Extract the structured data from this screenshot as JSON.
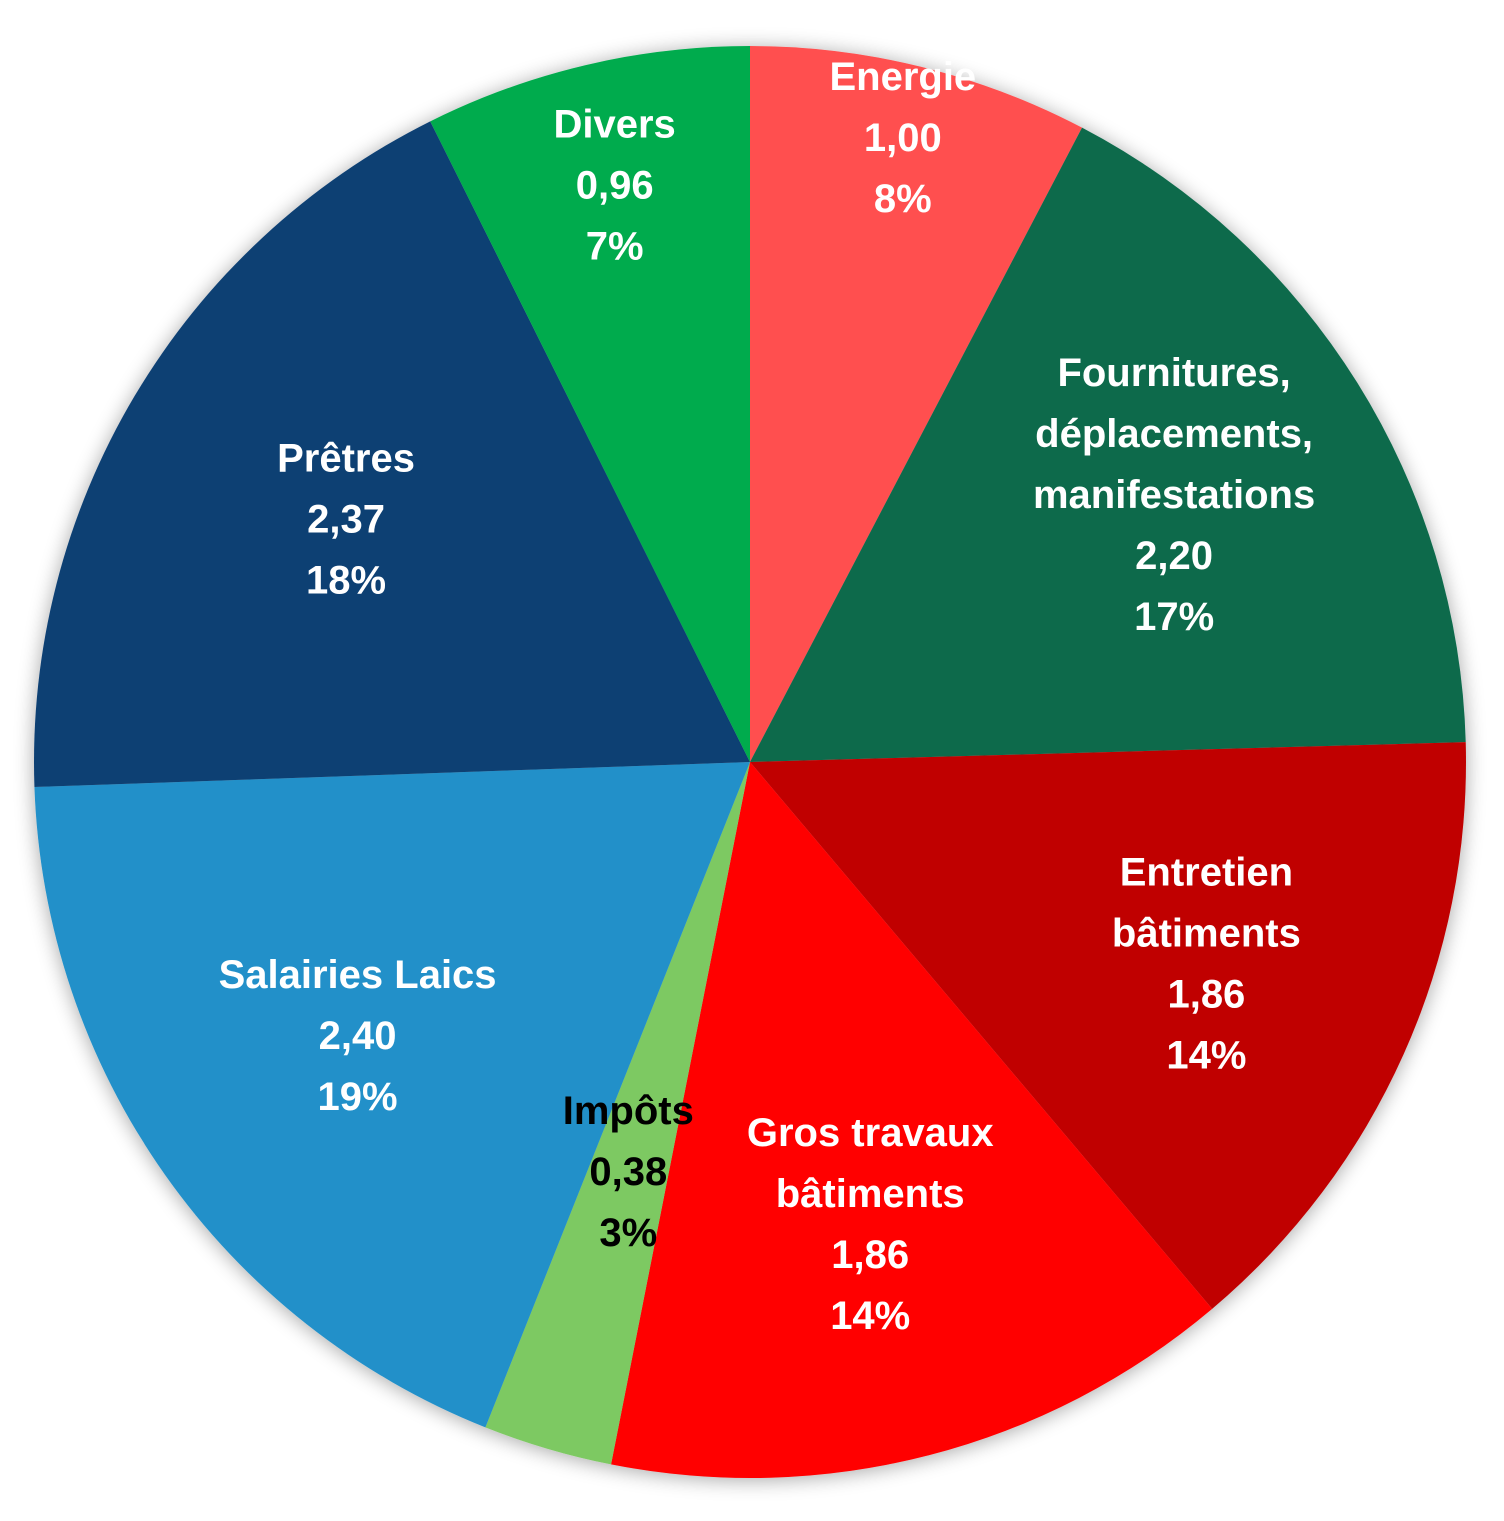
{
  "chart_data": {
    "type": "pie",
    "title": "",
    "start_angle_deg": 0,
    "direction": "clockwise",
    "slices": [
      {
        "label_lines": [
          "Energie"
        ],
        "value": "1,00",
        "percent": "8%",
        "numeric_value": 1.0,
        "color": "#FF5050",
        "label_color": "#FFFFFF"
      },
      {
        "label_lines": [
          "Fournitures,",
          "déplacements,",
          "manifestations"
        ],
        "value": "2,20",
        "percent": "17%",
        "numeric_value": 2.2,
        "color": "#0B6A4C",
        "label_color": "#FFFFFF"
      },
      {
        "label_lines": [
          "Entretien",
          "bâtiments"
        ],
        "value": "1,86",
        "percent": "14%",
        "numeric_value": 1.86,
        "color": "#C00000",
        "label_color": "#FFFFFF"
      },
      {
        "label_lines": [
          "Gros travaux",
          "bâtiments"
        ],
        "value": "1,86",
        "percent": "14%",
        "numeric_value": 1.86,
        "color": "#FF0000",
        "label_color": "#FFFFFF"
      },
      {
        "label_lines": [
          "Impôts"
        ],
        "value": "0,38",
        "percent": "3%",
        "numeric_value": 0.38,
        "color": "#7DC962",
        "label_color": "#000000"
      },
      {
        "label_lines": [
          "Salairies Laics"
        ],
        "value": "2,40",
        "percent": "19%",
        "numeric_value": 2.4,
        "color": "#2390C9",
        "label_color": "#FFFFFF"
      },
      {
        "label_lines": [
          "Prêtres"
        ],
        "value": "2,37",
        "percent": "18%",
        "numeric_value": 2.37,
        "color": "#0D3F73",
        "label_color": "#FFFFFF"
      },
      {
        "label_lines": [
          "Divers"
        ],
        "value": "0,96",
        "percent": "7%",
        "numeric_value": 0.96,
        "color": "#00AB4E",
        "label_color": "#FFFFFF"
      }
    ]
  }
}
